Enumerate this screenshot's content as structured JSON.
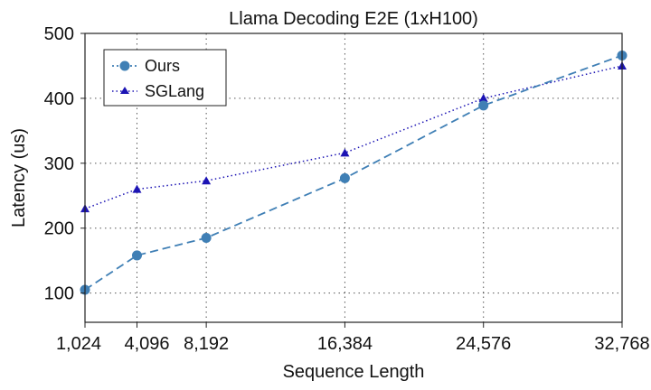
{
  "chart_data": {
    "type": "line",
    "title": "Llama Decoding E2E (1xH100)",
    "xlabel": "Sequence Length",
    "ylabel": "Latency (us)",
    "x": [
      1024,
      4096,
      8192,
      16384,
      24576,
      32768
    ],
    "x_tick_labels": [
      "1,024",
      "4,096",
      "8,192",
      "16,384",
      "24,576",
      "32,768"
    ],
    "y_ticks": [
      100,
      200,
      300,
      400,
      500
    ],
    "y_tick_labels": [
      "100",
      "200",
      "300",
      "400",
      "500"
    ],
    "xlim": [
      1024,
      32768
    ],
    "ylim": [
      55,
      500
    ],
    "grid": true,
    "legend_position": "top-left",
    "series": [
      {
        "name": "Ours",
        "values": [
          105,
          158,
          185,
          277,
          389,
          466
        ],
        "color": "#3f7fb5",
        "marker": "circle",
        "line_style": "dashed"
      },
      {
        "name": "SGLang",
        "values": [
          230,
          260,
          273,
          316,
          400,
          450
        ],
        "color": "#1c14b4",
        "marker": "triangle",
        "line_style": "dotted"
      }
    ]
  }
}
